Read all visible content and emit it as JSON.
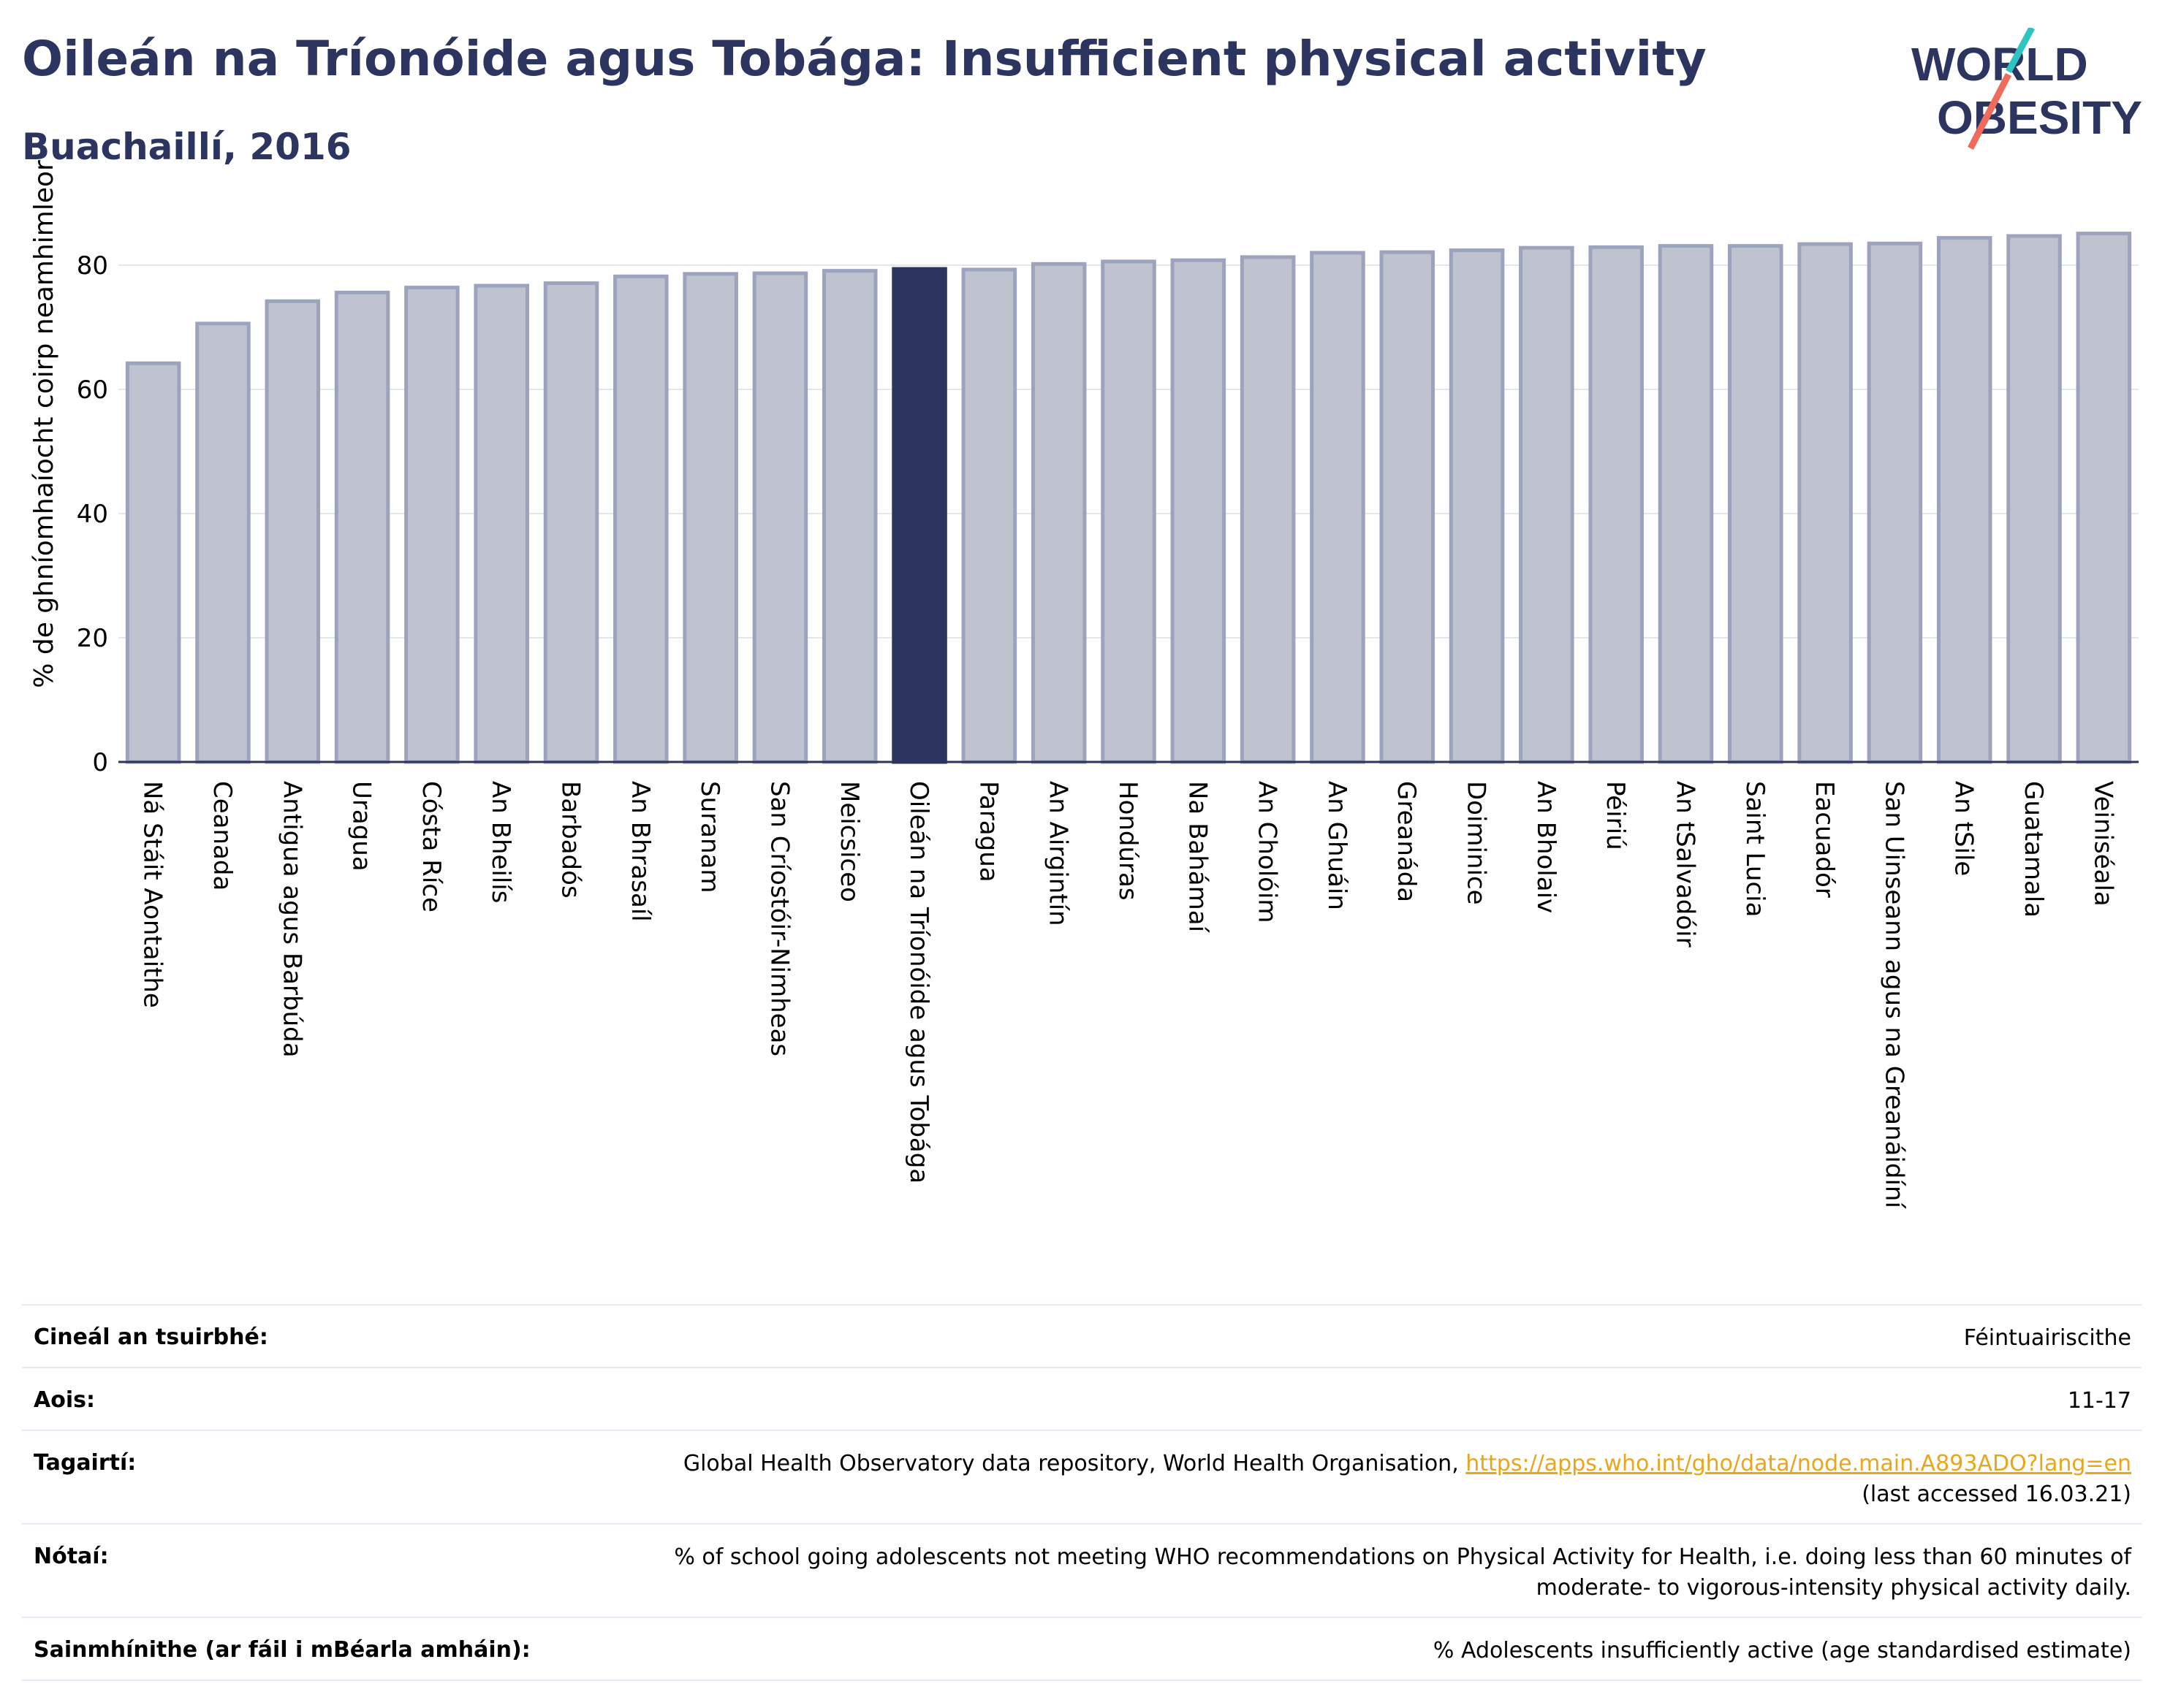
{
  "title": "Oileán na Tríonóide agus Tobága: Insufficient physical activity",
  "subtitle": "Buachaillí, 2016",
  "logo": {
    "line1": "WORLD",
    "line2": "OBESITY"
  },
  "colors": {
    "accent": "#2b3560",
    "bar": "#bfc3d0",
    "bar_edge": "#9ca3bc",
    "highlight": "#2b3560"
  },
  "chart_data": {
    "type": "bar",
    "ylabel": "% de ghníomhaíocht coirp neamhimleor",
    "ylim": [
      0,
      90
    ],
    "yticks": [
      0,
      20,
      40,
      60,
      80
    ],
    "grid": true,
    "highlight": "Oileán na Tríonóide agus Tobága",
    "categories": [
      "Ná Stáit Aontaithe",
      "Ceanada",
      "Antigua agus Barbúda",
      "Uragua",
      "Cósta Ríce",
      "An Bheilís",
      "Barbadós",
      "An Bhrasaíl",
      "Suranam",
      "San Críostóir-Nimheas",
      "Meicsiceo",
      "Oileán na Tríonóide agus Tobága",
      "Paragua",
      "An Airgintín",
      "Hondúras",
      "Na Bahámaí",
      "An Cholóim",
      "An Ghuáin",
      "Greanáda",
      "Doiminice",
      "An Bholaiv",
      "Péiriú",
      "An tSalvadóir",
      "Saint Lucia",
      "Eacuadór",
      "San Uinseann agus na Greanáidíní",
      "An tSile",
      "Guatamala",
      "Veiniséala"
    ],
    "values": [
      64.2,
      70.6,
      74.2,
      75.6,
      76.4,
      76.7,
      77.1,
      78.2,
      78.6,
      78.7,
      79.1,
      79.4,
      79.3,
      80.2,
      80.6,
      80.8,
      81.3,
      82.0,
      82.1,
      82.4,
      82.8,
      82.9,
      83.1,
      83.1,
      83.4,
      83.5,
      84.4,
      84.7,
      85.1
    ]
  },
  "info": {
    "survey_type": {
      "label": "Cineál an tsuirbhé:",
      "value": "Féintuairiscithe"
    },
    "age": {
      "label": "Aois:",
      "value": "11-17"
    },
    "references": {
      "label": "Tagairtí:",
      "text": "Global Health Observatory data repository, World Health Organisation, ",
      "link": "https://apps.who.int/gho/data/node.main.A893ADO?lang=en",
      "accessed": "(last accessed 16.03.21)"
    },
    "notes": {
      "label": "Nótaí:",
      "value": "% of school going adolescents not meeting WHO recommendations on Physical Activity for Health, i.e. doing less than 60 minutes of moderate- to vigorous-intensity physical activity daily."
    },
    "definitions": {
      "label": "Sainmhínithe (ar fáil i mBéarla amháin):",
      "value": "% Adolescents insufficiently active (age standardised estimate)"
    }
  }
}
